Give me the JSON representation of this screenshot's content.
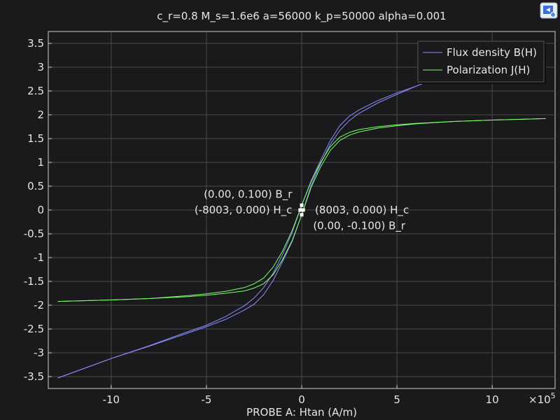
{
  "chart_data": {
    "type": "line",
    "title": "c_r=0.8 M_s=1.6e6 a=56000 k_p=50000 alpha=0.001",
    "xlabel": "PROBE A: Htan (A/m)",
    "ylabel": "",
    "x_exponent_label": "×10",
    "x_exponent_power": "5",
    "x_multiplier": 100000,
    "xlim": [
      -13.3,
      13.3
    ],
    "ylim": [
      -3.75,
      3.75
    ],
    "x_ticks": [
      -10,
      -5,
      0,
      5,
      10
    ],
    "x_tick_labels": [
      "-10",
      "-5",
      "0",
      "5",
      "10"
    ],
    "y_ticks": [
      -3.5,
      -3,
      -2.5,
      -2,
      -1.5,
      -1,
      -0.5,
      0,
      0.5,
      1,
      1.5,
      2,
      2.5,
      3,
      3.5
    ],
    "y_tick_labels": [
      "-3.5",
      "-3",
      "-2.5",
      "-2",
      "-1.5",
      "-1",
      "-0.5",
      "0",
      "0.5",
      "1",
      "1.5",
      "2",
      "2.5",
      "3",
      "3.5"
    ],
    "grid": true,
    "legend_position": "top-right",
    "series": [
      {
        "name": "Flux density B(H)",
        "color": "#8c8cff",
        "ascending": {
          "x": [
            -12.8,
            -10,
            -8,
            -6,
            -5,
            -4,
            -3,
            -2.5,
            -2,
            -1.5,
            -1,
            -0.5,
            0,
            0.5,
            1,
            1.5,
            2,
            2.5,
            3,
            4,
            5,
            6,
            6.45
          ],
          "y": [
            -3.53,
            -3.12,
            -2.85,
            -2.56,
            -2.42,
            -2.24,
            -2.01,
            -1.85,
            -1.63,
            -1.33,
            -0.93,
            -0.47,
            0.1,
            0.62,
            1.05,
            1.46,
            1.77,
            1.97,
            2.1,
            2.3,
            2.46,
            2.6,
            2.67
          ]
        },
        "descending": {
          "x": [
            6.45,
            6,
            5,
            4,
            3,
            2.5,
            2,
            1.5,
            1,
            0.5,
            0,
            -0.5,
            -1,
            -1.5,
            -2,
            -2.5,
            -3,
            -4,
            -5,
            -6,
            -8,
            -10,
            -12.8
          ],
          "y": [
            2.67,
            2.6,
            2.43,
            2.25,
            2.03,
            1.88,
            1.67,
            1.38,
            0.98,
            0.52,
            -0.1,
            -0.66,
            -1.08,
            -1.48,
            -1.78,
            -1.98,
            -2.1,
            -2.3,
            -2.45,
            -2.59,
            -2.86,
            -3.12,
            -3.53
          ]
        }
      },
      {
        "name": "Polarization J(H)",
        "color": "#7dff6a",
        "ascending": {
          "x": [
            -12.8,
            -10,
            -8,
            -6,
            -5,
            -4,
            -3,
            -2.5,
            -2,
            -1.5,
            -1,
            -0.5,
            0,
            0.5,
            1,
            1.5,
            2,
            2.5,
            3,
            4,
            5,
            6,
            8,
            10,
            12.8
          ],
          "y": [
            -1.92,
            -1.89,
            -1.86,
            -1.8,
            -1.76,
            -1.71,
            -1.63,
            -1.55,
            -1.43,
            -1.2,
            -0.86,
            -0.43,
            0.1,
            0.6,
            1.0,
            1.33,
            1.53,
            1.63,
            1.69,
            1.75,
            1.79,
            1.82,
            1.86,
            1.89,
            1.92
          ]
        },
        "descending": {
          "x": [
            12.8,
            10,
            8,
            6,
            5,
            4,
            3,
            2.5,
            2,
            1.5,
            1,
            0.5,
            0,
            -0.5,
            -1,
            -1.5,
            -2,
            -2.5,
            -3,
            -4,
            -5,
            -6,
            -8,
            -10,
            -12.8
          ],
          "y": [
            1.92,
            1.89,
            1.86,
            1.81,
            1.77,
            1.72,
            1.64,
            1.57,
            1.46,
            1.25,
            0.91,
            0.48,
            -0.1,
            -0.64,
            -1.04,
            -1.36,
            -1.55,
            -1.64,
            -1.7,
            -1.75,
            -1.79,
            -1.82,
            -1.86,
            -1.89,
            -1.92
          ]
        }
      }
    ],
    "markers": [
      {
        "x": 0,
        "y": 0.1
      },
      {
        "x": 0,
        "y": -0.1
      },
      {
        "x": -0.08003,
        "y": 0
      },
      {
        "x": 0.08003,
        "y": 0
      }
    ],
    "annotations": [
      {
        "text": "(0.00, 0.100) B_r",
        "x": -0.5,
        "y": 0.33,
        "anchor": "end"
      },
      {
        "text": "(-8003, 0.000) H_c",
        "x": -0.5,
        "y": 0.0,
        "anchor": "end"
      },
      {
        "text": "(8003, 0.000) H_c",
        "x": 0.7,
        "y": 0.0,
        "anchor": "start"
      },
      {
        "text": "(0.00, -0.100) B_r",
        "x": 0.6,
        "y": -0.33,
        "anchor": "start"
      }
    ]
  }
}
